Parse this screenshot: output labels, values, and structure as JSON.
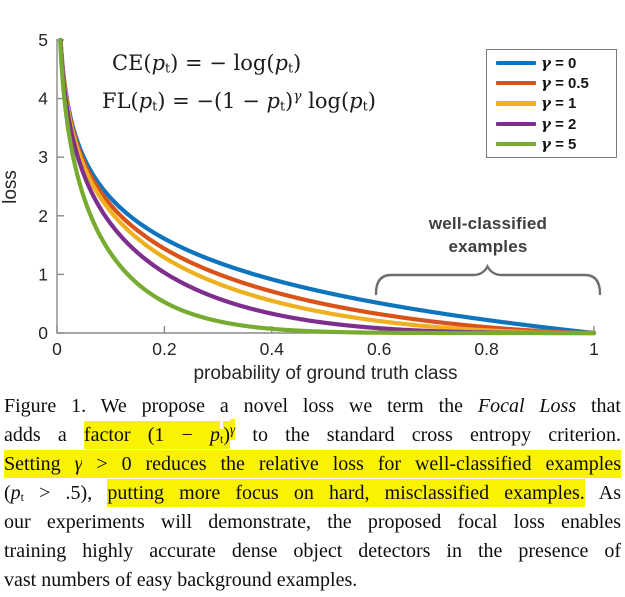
{
  "colors": {
    "highlight": "#FBF103",
    "axis": "#8A8A8A",
    "tick_label": "#262626",
    "brace": "#6D6D6D",
    "annotation_text": "#3E3E3E",
    "text": "#0D0D0D"
  },
  "chart_data": {
    "type": "line",
    "title": "",
    "xlabel": "probability of ground truth class",
    "ylabel": "loss",
    "xlim": [
      0,
      1
    ],
    "ylim": [
      0,
      5
    ],
    "xticks": [
      0,
      0.2,
      0.4,
      0.6,
      0.8,
      1
    ],
    "xtick_labels": [
      "0",
      "0.2",
      "0.4",
      "0.6",
      "0.8",
      "1"
    ],
    "yticks": [
      0,
      1,
      2,
      3,
      4,
      5
    ],
    "ytick_labels": [
      "0",
      "1",
      "2",
      "3",
      "4",
      "5"
    ],
    "grid": false,
    "legend_position": "top-right",
    "formulas": [
      "CE(pt) = −log(pt)",
      "FL(pt) = −(1 − pt)^γ log(pt)"
    ],
    "sample_x": [
      0.1,
      0.2,
      0.3,
      0.4,
      0.5,
      0.6,
      0.7,
      0.8,
      0.9,
      1.0
    ],
    "series": [
      {
        "name": "γ = 0",
        "symbol": "γ",
        "rest": " = 0",
        "gamma": 0,
        "color": "#0D74BD",
        "sample_values": [
          2.303,
          1.609,
          1.204,
          0.916,
          0.693,
          0.511,
          0.357,
          0.223,
          0.105,
          0
        ]
      },
      {
        "name": "γ = 0.5",
        "symbol": "γ",
        "rest": " = 0.5",
        "gamma": 0.5,
        "color": "#D95319",
        "sample_values": [
          2.184,
          1.439,
          1.007,
          0.71,
          0.49,
          0.323,
          0.195,
          0.1,
          0.033,
          0
        ]
      },
      {
        "name": "γ = 1",
        "symbol": "γ",
        "rest": " = 1",
        "gamma": 1,
        "color": "#EDB120",
        "sample_values": [
          2.072,
          1.287,
          0.843,
          0.55,
          0.347,
          0.204,
          0.107,
          0.045,
          0.011,
          0
        ]
      },
      {
        "name": "γ = 2",
        "symbol": "γ",
        "rest": " = 2",
        "gamma": 2,
        "color": "#7E2F8E",
        "sample_values": [
          1.865,
          1.03,
          0.59,
          0.33,
          0.173,
          0.082,
          0.032,
          0.009,
          0.001,
          0
        ]
      },
      {
        "name": "γ = 5",
        "symbol": "γ",
        "rest": " = 5",
        "gamma": 5,
        "color": "#77AC30",
        "sample_values": [
          1.36,
          0.527,
          0.202,
          0.071,
          0.022,
          0.005,
          0.001,
          0.0,
          0.0,
          0
        ]
      }
    ],
    "annotation": {
      "line1": "well-classified",
      "line2": "examples"
    }
  },
  "equations": {
    "ce": [
      {
        "t": "CE("
      },
      {
        "t": "p",
        "it": true
      },
      {
        "t": "t",
        "sub": true
      },
      {
        "t": ") = − log("
      },
      {
        "t": "p",
        "it": true
      },
      {
        "t": "t",
        "sub": true
      },
      {
        "t": ")"
      }
    ],
    "fl": [
      {
        "t": "FL("
      },
      {
        "t": "p",
        "it": true
      },
      {
        "t": "t",
        "sub": true
      },
      {
        "t": ") = −(1 − "
      },
      {
        "t": "p",
        "it": true
      },
      {
        "t": "t",
        "sub": true
      },
      {
        "t": ")"
      },
      {
        "t": "γ",
        "sup": true,
        "it": true
      },
      {
        "t": " log("
      },
      {
        "t": "p",
        "it": true
      },
      {
        "t": "t",
        "sub": true
      },
      {
        "t": ")"
      }
    ]
  },
  "caption": {
    "lines": [
      [
        {
          "t": "Figure 1. We propose a novel loss we term the "
        },
        {
          "t": "Focal Loss",
          "it": true
        },
        {
          "t": " that"
        }
      ],
      [
        {
          "t": "adds a "
        },
        {
          "t": "factor (1 − ",
          "hl": true
        },
        {
          "t": "p",
          "hl": true,
          "it": true
        },
        {
          "t": "t",
          "hl": true,
          "sub": true
        },
        {
          "t": ")",
          "hl": true
        },
        {
          "t": "γ",
          "hl": true,
          "sup": true,
          "it": true
        },
        {
          "t": " to the standard cross entropy criterion."
        }
      ],
      [
        {
          "t": "Setting ",
          "hl": true
        },
        {
          "t": "γ",
          "hl": true,
          "it": true
        },
        {
          "t": " > 0 reduces the relative loss for well-classified examples",
          "hl": true
        }
      ],
      [
        {
          "t": "("
        },
        {
          "t": "p",
          "it": true
        },
        {
          "t": "t",
          "sub": true
        },
        {
          "t": " > .5), "
        },
        {
          "t": "putting more focus on hard, misclassified examples.",
          "hl": true
        },
        {
          "t": " As"
        }
      ],
      [
        {
          "t": "our experiments will demonstrate, the proposed focal loss enables"
        }
      ],
      [
        {
          "t": "training highly accurate dense object detectors in the presence of"
        }
      ],
      [
        {
          "t": "vast numbers of easy background examples."
        }
      ]
    ]
  }
}
